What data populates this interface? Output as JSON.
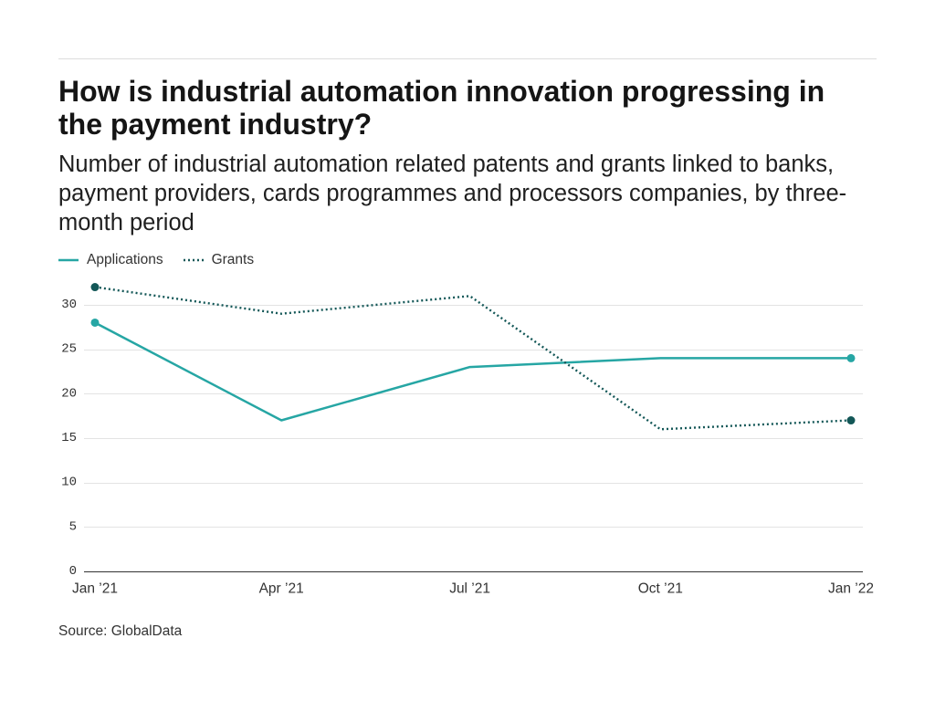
{
  "chart_data": {
    "type": "line",
    "title": "How is industrial automation innovation progressing in the payment industry?",
    "subtitle": "Number of industrial automation related patents and grants linked to banks, payment providers, cards programmes and processors companies, by three-month period",
    "x": [
      "2021-01",
      "2021-04",
      "2021-07",
      "2021-10",
      "2022-01"
    ],
    "xtick_labels": [
      "Jan ’21",
      "Apr ’21",
      "Jul ’21",
      "Oct ’21",
      "Jan ’22"
    ],
    "yticks": [
      0,
      5,
      10,
      15,
      20,
      25,
      30
    ],
    "grid": true,
    "legend": "top-left",
    "series": [
      {
        "name": "Applications",
        "values": [
          28,
          17,
          23,
          24,
          24
        ],
        "color": "#26a6a4",
        "line_style": "solid",
        "end_markers": true
      },
      {
        "name": "Grants",
        "values": [
          32,
          29,
          31,
          16,
          17
        ],
        "color": "#135757",
        "line_style": "dotted",
        "end_markers": true
      }
    ],
    "source": "Source: GlobalData"
  }
}
